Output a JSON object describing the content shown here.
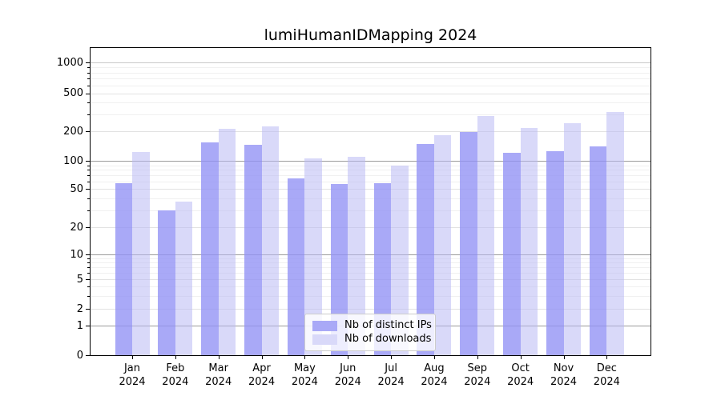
{
  "title": "lumiHumanIDMapping 2024",
  "chart_data": {
    "type": "bar",
    "title": "lumiHumanIDMapping 2024",
    "yscale": "symlog",
    "grid": true,
    "legend_position": "lower center",
    "ylim": [
      0,
      1400
    ],
    "y_ticks": [
      1000,
      500,
      200,
      100,
      50,
      20,
      10,
      5,
      2,
      1,
      0
    ],
    "categories": [
      "Jan 2024",
      "Feb 2024",
      "Mar 2024",
      "Apr 2024",
      "May 2024",
      "Jun 2024",
      "Jul 2024",
      "Aug 2024",
      "Sep 2024",
      "Oct 2024",
      "Nov 2024",
      "Dec 2024"
    ],
    "series": [
      {
        "name": "Nb of distinct IPs",
        "color": "#a9a9f7",
        "values": [
          57,
          30,
          155,
          146,
          65,
          56,
          57,
          148,
          197,
          121,
          127,
          142
        ]
      },
      {
        "name": "Nb of downloads",
        "color": "#d9d9f9",
        "values": [
          124,
          37,
          212,
          224,
          106,
          110,
          90,
          182,
          288,
          217,
          245,
          318
        ]
      }
    ]
  }
}
